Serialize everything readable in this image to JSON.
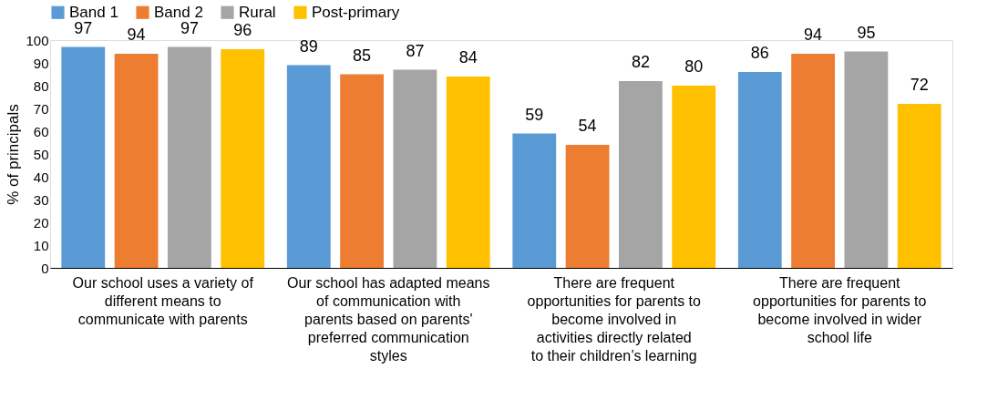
{
  "chart_data": {
    "type": "bar",
    "ylabel": "% of principals",
    "categories": [
      "Our school uses a variety of different means to communicate with parents",
      "Our school has adapted means of communication with parents based on parents' preferred communication styles",
      "There are frequent opportunities for parents to become involved in activities directly related to their children’s learning",
      "There are frequent opportunities for parents to become involved in wider school life"
    ],
    "series": [
      {
        "name": "Band 1",
        "color": "#5b9bd5",
        "values": [
          97,
          89,
          59,
          86
        ]
      },
      {
        "name": "Band 2",
        "color": "#ed7d31",
        "values": [
          94,
          85,
          54,
          94
        ]
      },
      {
        "name": "Rural",
        "color": "#a5a5a5",
        "values": [
          97,
          87,
          82,
          95
        ]
      },
      {
        "name": "Post-primary",
        "color": "#ffc000",
        "values": [
          96,
          84,
          80,
          72
        ]
      }
    ],
    "ylim": [
      0,
      100
    ],
    "yticks": [
      0,
      10,
      20,
      30,
      40,
      50,
      60,
      70,
      80,
      90,
      100
    ],
    "data_labels": true,
    "legend": "top",
    "grid": false
  }
}
